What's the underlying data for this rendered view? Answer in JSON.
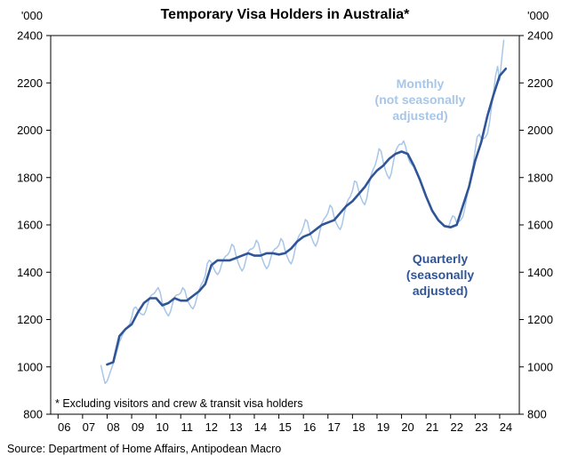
{
  "title": "Temporary Visa Holders in Australia*",
  "footnote": "* Excluding visitors and crew & transit visa holders",
  "source": "Source: Department of Home Affairs, Antipodean Macro",
  "axis_units": {
    "left": "'000",
    "right": "'000"
  },
  "annotations": {
    "monthly": {
      "line1": "Monthly",
      "line2": "(not seasonally",
      "line3": "adjusted)",
      "color": "#a8c6e8"
    },
    "quarterly": {
      "line1": "Quarterly",
      "line2": "(seasonally",
      "line3": "adjusted)",
      "color": "#2f5597"
    }
  },
  "chart_data": {
    "type": "line",
    "title": "Temporary Visa Holders in Australia*",
    "ylabel": "'000",
    "ylim": [
      800,
      2400
    ],
    "yticks": [
      800,
      1000,
      1200,
      1400,
      1600,
      1800,
      2000,
      2200,
      2400
    ],
    "xlim": [
      2005.7,
      2024.8
    ],
    "xticks": [
      2006,
      2007,
      2008,
      2009,
      2010,
      2011,
      2012,
      2013,
      2014,
      2015,
      2016,
      2017,
      2018,
      2019,
      2020,
      2021,
      2022,
      2023,
      2024
    ],
    "xtick_labels": [
      "06",
      "07",
      "08",
      "09",
      "10",
      "11",
      "12",
      "13",
      "14",
      "15",
      "16",
      "17",
      "18",
      "19",
      "20",
      "21",
      "22",
      "23",
      "24"
    ],
    "grid": false,
    "legend_position": "annotations-on-plot",
    "series": [
      {
        "name": "Monthly (not seasonally adjusted)",
        "color": "#a8c6e8",
        "width": 1.5,
        "x_start": 2007.75,
        "x_step": 0.0833333,
        "values": [
          1005,
          965,
          930,
          940,
          965,
          990,
          1015,
          1045,
          1075,
          1105,
          1125,
          1145,
          1160,
          1170,
          1180,
          1210,
          1247,
          1253,
          1240,
          1228,
          1222,
          1220,
          1237,
          1268,
          1295,
          1305,
          1310,
          1323,
          1335,
          1314,
          1271,
          1246,
          1228,
          1215,
          1233,
          1266,
          1296,
          1304,
          1305,
          1313,
          1335,
          1324,
          1291,
          1270,
          1254,
          1245,
          1263,
          1296,
          1326,
          1347,
          1362,
          1386,
          1437,
          1451,
          1442,
          1419,
          1401,
          1390,
          1402,
          1432,
          1456,
          1468,
          1474,
          1489,
          1518,
          1509,
          1473,
          1443,
          1421,
          1405,
          1421,
          1457,
          1487,
          1497,
          1499,
          1509,
          1535,
          1522,
          1483,
          1453,
          1431,
          1415,
          1428,
          1460,
          1487,
          1498,
          1503,
          1514,
          1542,
          1530,
          1493,
          1467,
          1447,
          1435,
          1458,
          1500,
          1537,
          1557,
          1569,
          1592,
          1623,
          1613,
          1574,
          1546,
          1524,
          1510,
          1531,
          1572,
          1607,
          1624,
          1635,
          1652,
          1683,
          1673,
          1634,
          1609,
          1591,
          1580,
          1604,
          1649,
          1687,
          1708,
          1721,
          1745,
          1785,
          1780,
          1745,
          1717,
          1697,
          1685,
          1713,
          1764,
          1808,
          1833,
          1850,
          1881,
          1922,
          1911,
          1867,
          1834,
          1810,
          1795,
          1819,
          1867,
          1909,
          1929,
          1941,
          1940,
          1955,
          1930,
          1890,
          1865,
          1855,
          1845,
          1830,
          1810,
          1790,
          1767,
          1743,
          1720,
          1700,
          1680,
          1660,
          1647,
          1633,
          1620,
          1612,
          1603,
          1595,
          1593,
          1591,
          1617,
          1638,
          1633,
          1609,
          1613,
          1621,
          1635,
          1671,
          1719,
          1765,
          1811,
          1851,
          1915,
          1972,
          1983,
          1965,
          1964,
          1970,
          1985,
          2030,
          2097,
          2160,
          2230,
          2270,
          2210,
          2300,
          2380
        ]
      },
      {
        "name": "Quarterly (seasonally adjusted)",
        "color": "#2f5597",
        "width": 2.6,
        "x_start": 2008.0,
        "x_step": 0.25,
        "values": [
          1010,
          1020,
          1130,
          1160,
          1180,
          1230,
          1270,
          1290,
          1290,
          1260,
          1270,
          1290,
          1280,
          1280,
          1300,
          1320,
          1350,
          1430,
          1450,
          1450,
          1450,
          1460,
          1470,
          1480,
          1470,
          1470,
          1480,
          1480,
          1475,
          1480,
          1500,
          1530,
          1550,
          1560,
          1580,
          1600,
          1610,
          1620,
          1650,
          1680,
          1700,
          1730,
          1760,
          1800,
          1830,
          1850,
          1880,
          1900,
          1910,
          1900,
          1850,
          1790,
          1720,
          1660,
          1620,
          1595,
          1590,
          1600,
          1680,
          1760,
          1870,
          1950,
          2060,
          2150,
          2230,
          2260
        ]
      }
    ]
  }
}
